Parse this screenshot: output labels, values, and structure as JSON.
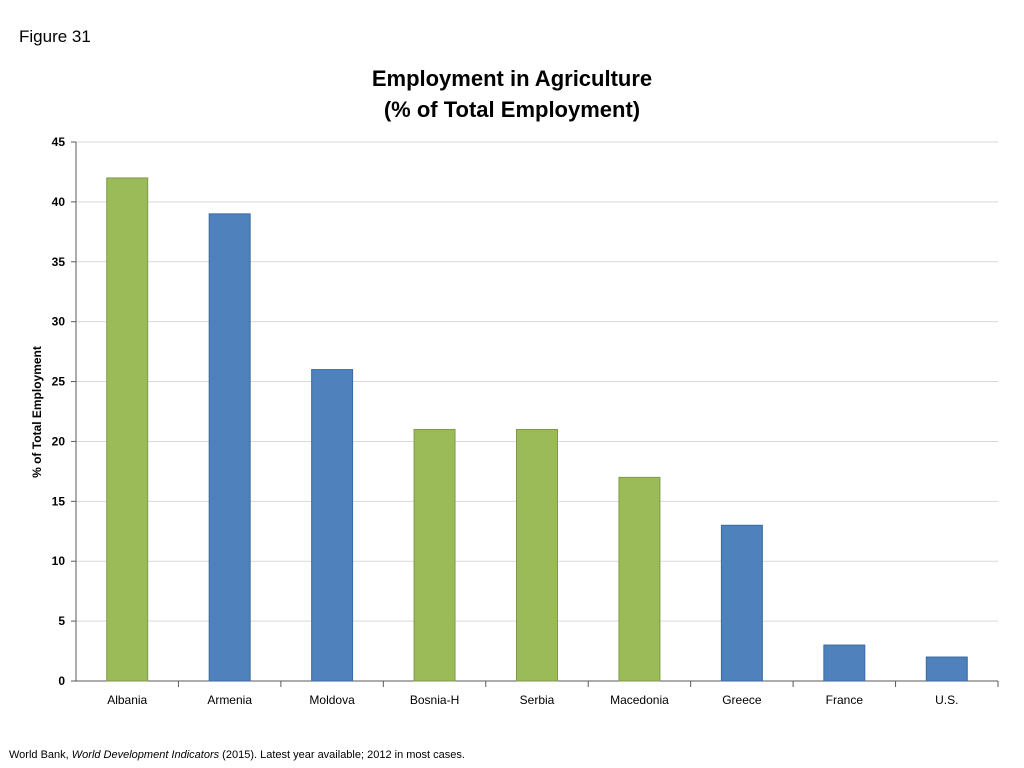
{
  "figure_label": "Figure 31",
  "source": {
    "prefix": "World Bank, ",
    "italic": "World Development Indicators",
    "suffix": " (2015). Latest year available; 2012 in most cases."
  },
  "colors": {
    "green": "#9bbb59",
    "blue": "#4f81bd",
    "grid": "#d9d9d9",
    "axis": "#595959"
  },
  "chart_data": {
    "type": "bar",
    "title": [
      "Employment in Agriculture",
      "(% of Total Employment)"
    ],
    "xlabel": "",
    "ylabel": "% of Total Employment",
    "ylim": [
      0,
      45
    ],
    "yticks": [
      0,
      5,
      10,
      15,
      20,
      25,
      30,
      35,
      40,
      45
    ],
    "grid": true,
    "categories": [
      "Albania",
      "Armenia",
      "Moldova",
      "Bosnia-H",
      "Serbia",
      "Macedonia",
      "Greece",
      "France",
      "U.S."
    ],
    "values": [
      42,
      39,
      26,
      21,
      21,
      17,
      13,
      3,
      2
    ],
    "bar_colors": [
      "green",
      "blue",
      "blue",
      "green",
      "green",
      "green",
      "blue",
      "blue",
      "blue"
    ]
  }
}
